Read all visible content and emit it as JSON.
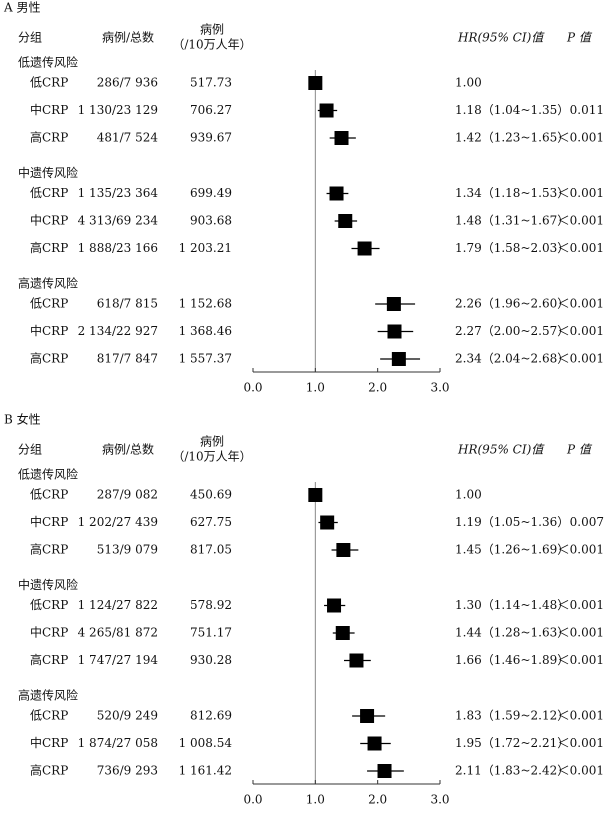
{
  "chart_data": [
    {
      "type": "forest",
      "title": "A 男性",
      "headers": {
        "group": "分组",
        "cases": "病例/总数",
        "rate": [
          "病例",
          "（/10万人年）"
        ],
        "hr": "HR(95% CI)值",
        "p": "P 值"
      },
      "groups": [
        {
          "name": "低遗传风险",
          "labels": [
            "低CRP",
            "中CRP",
            "高CRP"
          ],
          "cases": [
            "286/7 936",
            "1 130/23 129",
            "481/7 524"
          ],
          "rates": [
            "517.73",
            "706.27",
            "939.67"
          ],
          "hr": [
            1.0,
            1.18,
            1.42
          ],
          "ci_low": [
            null,
            1.04,
            1.23
          ],
          "ci_high": [
            null,
            1.35,
            1.65
          ],
          "hr_labels": [
            "1.00",
            "1.18（1.04~1.35）",
            "1.42（1.23~1.65）"
          ],
          "p_values": [
            null,
            "0.011",
            "＜0.001"
          ]
        },
        {
          "name": "中遗传风险",
          "labels": [
            "低CRP",
            "中CRP",
            "高CRP"
          ],
          "cases": [
            "1 135/23 364",
            "4 313/69 234",
            "1 888/23 166"
          ],
          "rates": [
            "699.49",
            "903.68",
            "1 203.21"
          ],
          "hr": [
            1.34,
            1.48,
            1.79
          ],
          "ci_low": [
            1.18,
            1.31,
            1.58
          ],
          "ci_high": [
            1.53,
            1.67,
            2.03
          ],
          "hr_labels": [
            "1.34（1.18~1.53）",
            "1.48（1.31~1.67）",
            "1.79（1.58~2.03）"
          ],
          "p_values": [
            "＜0.001",
            "＜0.001",
            "＜0.001"
          ]
        },
        {
          "name": "高遗传风险",
          "labels": [
            "低CRP",
            "中CRP",
            "高CRP"
          ],
          "cases": [
            "618/7 815",
            "2 134/22 927",
            "817/7 847"
          ],
          "rates": [
            "1 152.68",
            "1 368.46",
            "1 557.37"
          ],
          "hr": [
            2.26,
            2.27,
            2.34
          ],
          "ci_low": [
            1.96,
            2.0,
            2.04
          ],
          "ci_high": [
            2.6,
            2.57,
            2.68
          ],
          "hr_labels": [
            "2.26（1.96~2.60）",
            "2.27（2.00~2.57）",
            "2.34（2.04~2.68）"
          ],
          "p_values": [
            "＜0.001",
            "＜0.001",
            "＜0.001"
          ]
        }
      ],
      "xlim": [
        0,
        3
      ],
      "xticks": [
        {
          "value": 0,
          "label": "0.0"
        },
        {
          "value": 1,
          "label": "1.0"
        },
        {
          "value": 2,
          "label": "2.0"
        },
        {
          "value": 3,
          "label": "3.0"
        }
      ],
      "reference": 1,
      "color": "#000000"
    },
    {
      "type": "forest",
      "title": "B 女性",
      "headers": {
        "group": "分组",
        "cases": "病例/总数",
        "rate": [
          "病例",
          "（/10万人年）"
        ],
        "hr": "HR(95% CI)值",
        "p": "P 值"
      },
      "groups": [
        {
          "name": "低遗传风险",
          "labels": [
            "低CRP",
            "中CRP",
            "高CRP"
          ],
          "cases": [
            "287/9 082",
            "1 202/27 439",
            "513/9 079"
          ],
          "rates": [
            "450.69",
            "627.75",
            "817.05"
          ],
          "hr": [
            1.0,
            1.19,
            1.45
          ],
          "ci_low": [
            null,
            1.05,
            1.26
          ],
          "ci_high": [
            null,
            1.36,
            1.69
          ],
          "hr_labels": [
            "1.00",
            "1.19（1.05~1.36）",
            "1.45（1.26~1.69）"
          ],
          "p_values": [
            null,
            "0.007",
            "＜0.001"
          ]
        },
        {
          "name": "中遗传风险",
          "labels": [
            "低CRP",
            "中CRP",
            "高CRP"
          ],
          "cases": [
            "1 124/27 822",
            "4 265/81 872",
            "1 747/27 194"
          ],
          "rates": [
            "578.92",
            "751.17",
            "930.28"
          ],
          "hr": [
            1.3,
            1.44,
            1.66
          ],
          "ci_low": [
            1.14,
            1.28,
            1.46
          ],
          "ci_high": [
            1.48,
            1.63,
            1.89
          ],
          "hr_labels": [
            "1.30（1.14~1.48）",
            "1.44（1.28~1.63）",
            "1.66（1.46~1.89）"
          ],
          "p_values": [
            "＜0.001",
            "＜0.001",
            "＜0.001"
          ]
        },
        {
          "name": "高遗传风险",
          "labels": [
            "低CRP",
            "中CRP",
            "高CRP"
          ],
          "cases": [
            "520/9 249",
            "1 874/27 058",
            "736/9 293"
          ],
          "rates": [
            "812.69",
            "1 008.54",
            "1 161.42"
          ],
          "hr": [
            1.83,
            1.95,
            2.11
          ],
          "ci_low": [
            1.59,
            1.72,
            1.83
          ],
          "ci_high": [
            2.12,
            2.21,
            2.42
          ],
          "hr_labels": [
            "1.83（1.59~2.12）",
            "1.95（1.72~2.21）",
            "2.11（1.83~2.42）"
          ],
          "p_values": [
            "＜0.001",
            "＜0.001",
            "＜0.001"
          ]
        }
      ],
      "xlim": [
        0,
        3
      ],
      "xticks": [
        {
          "value": 0,
          "label": "0.0"
        },
        {
          "value": 1,
          "label": "1.0"
        },
        {
          "value": 2,
          "label": "2.0"
        },
        {
          "value": 3,
          "label": "3.0"
        }
      ],
      "reference": 1,
      "color": "#000000"
    }
  ]
}
